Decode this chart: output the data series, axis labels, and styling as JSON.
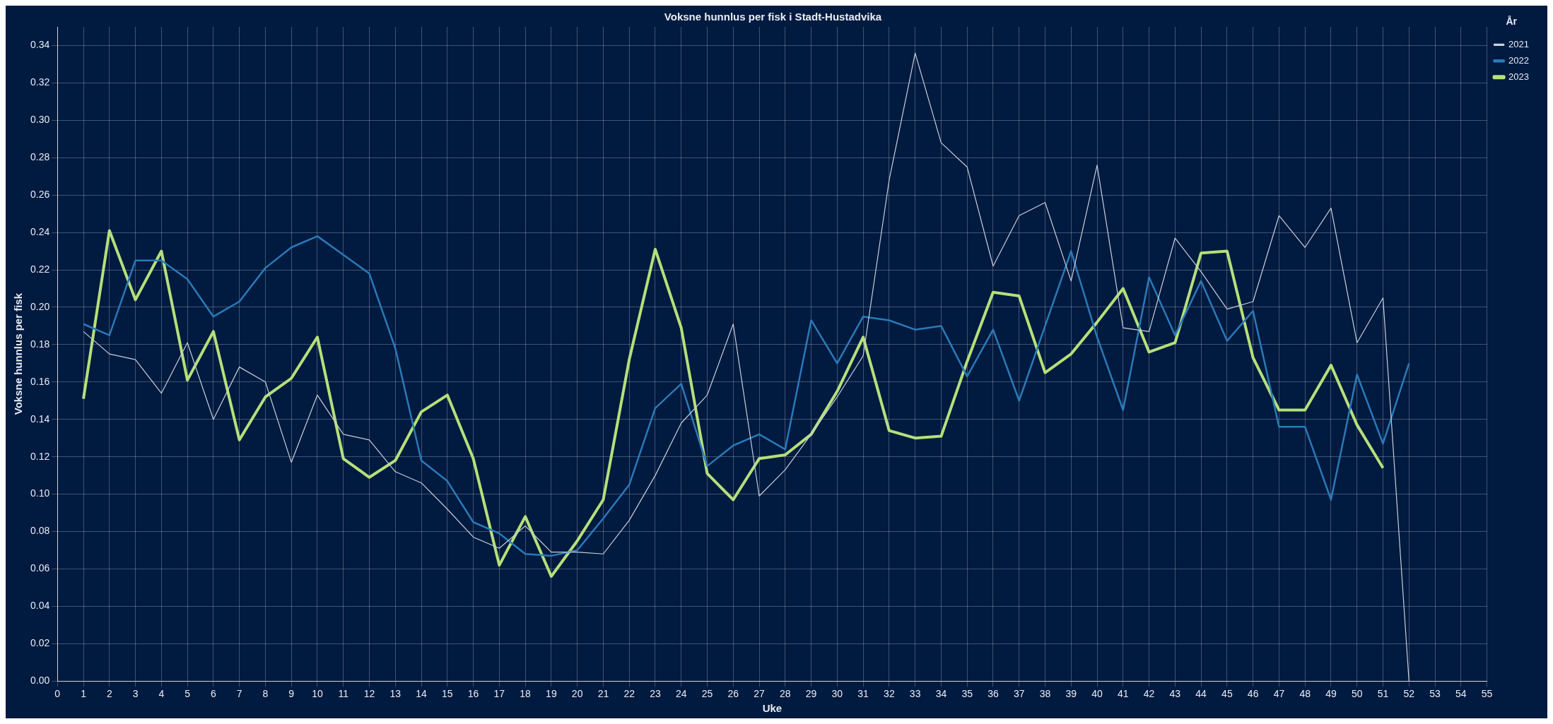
{
  "chart_data": {
    "type": "line",
    "title": "Voksne hunnlus per fisk i Stadt-Hustadvika",
    "xlabel": "Uke",
    "ylabel": "Voksne hunnlus per fisk",
    "legend_title": "År",
    "x": [
      1,
      2,
      3,
      4,
      5,
      6,
      7,
      8,
      9,
      10,
      11,
      12,
      13,
      14,
      15,
      16,
      17,
      18,
      19,
      20,
      21,
      22,
      23,
      24,
      25,
      26,
      27,
      28,
      29,
      30,
      31,
      32,
      33,
      34,
      35,
      36,
      37,
      38,
      39,
      40,
      41,
      42,
      43,
      44,
      45,
      46,
      47,
      48,
      49,
      50,
      51,
      52
    ],
    "series": [
      {
        "name": "2021",
        "color": "#c8d0dc",
        "values": [
          0.187,
          0.175,
          0.172,
          0.154,
          0.181,
          0.14,
          0.168,
          0.16,
          0.117,
          0.153,
          0.132,
          0.129,
          0.112,
          0.106,
          0.092,
          0.077,
          0.071,
          0.083,
          0.069,
          0.069,
          0.068,
          0.086,
          0.11,
          0.138,
          0.153,
          0.191,
          0.099,
          0.113,
          0.132,
          0.152,
          0.174,
          0.268,
          0.336,
          0.288,
          0.275,
          0.222,
          0.249,
          0.256,
          0.214,
          0.276,
          0.189,
          0.187,
          0.237,
          0.219,
          0.199,
          0.203,
          0.249,
          0.232,
          0.253,
          0.181,
          0.205,
          0
        ]
      },
      {
        "name": "2022",
        "color": "#2a7ab8",
        "values": [
          0.191,
          0.185,
          0.225,
          0.225,
          0.215,
          0.195,
          0.203,
          0.221,
          0.232,
          0.238,
          0.228,
          0.218,
          0.178,
          0.118,
          0.107,
          0.085,
          0.079,
          0.068,
          0.067,
          0.07,
          0.087,
          0.105,
          0.146,
          0.159,
          0.115,
          0.126,
          0.132,
          0.124,
          0.193,
          0.17,
          0.195,
          0.193,
          0.188,
          0.19,
          0.163,
          0.188,
          0.15,
          0.19,
          0.23,
          0.184,
          0.145,
          0.216,
          0.185,
          0.214,
          0.182,
          0.198,
          0.136,
          0.136,
          0.097,
          0.164,
          0.127,
          0.17
        ]
      },
      {
        "name": "2023",
        "color": "#b5e07a",
        "values": [
          0.151,
          0.241,
          0.204,
          0.23,
          0.161,
          0.187,
          0.129,
          0.152,
          0.162,
          0.184,
          0.119,
          0.109,
          0.118,
          0.144,
          0.153,
          0.119,
          0.062,
          0.088,
          0.056,
          0.075,
          0.097,
          0.172,
          0.231,
          0.189,
          0.111,
          0.097,
          0.119,
          0.121,
          0.132,
          0.155,
          0.184,
          0.134,
          0.13,
          0.131,
          0.171,
          0.208,
          0.206,
          0.165,
          0.175,
          0.192,
          0.21,
          0.176,
          0.181,
          0.229,
          0.23,
          0.173,
          0.145,
          0.145,
          0.169,
          0.137,
          0.114,
          null
        ]
      }
    ],
    "xlim": [
      0,
      55
    ],
    "xticks": [
      0,
      1,
      2,
      3,
      4,
      5,
      6,
      7,
      8,
      9,
      10,
      11,
      12,
      13,
      14,
      15,
      16,
      17,
      18,
      19,
      20,
      21,
      22,
      23,
      24,
      25,
      26,
      27,
      28,
      29,
      30,
      31,
      32,
      33,
      34,
      35,
      36,
      37,
      38,
      39,
      40,
      41,
      42,
      43,
      44,
      45,
      46,
      47,
      48,
      49,
      50,
      51,
      52,
      53,
      54,
      55
    ],
    "ylim": [
      0,
      0.35
    ],
    "yticks": [
      {
        "value": 0,
        "label": "0.00"
      },
      {
        "value": 0.02,
        "label": "0.02"
      },
      {
        "value": 0.04,
        "label": "0.04"
      },
      {
        "value": 0.06,
        "label": "0.06"
      },
      {
        "value": 0.08,
        "label": "0.08"
      },
      {
        "value": 0.1,
        "label": "0.10"
      },
      {
        "value": 0.12,
        "label": "0.12"
      },
      {
        "value": 0.14,
        "label": "0.14"
      },
      {
        "value": 0.16,
        "label": "0.16"
      },
      {
        "value": 0.18,
        "label": "0.18"
      },
      {
        "value": 0.2,
        "label": "0.20"
      },
      {
        "value": 0.22,
        "label": "0.22"
      },
      {
        "value": 0.24,
        "label": "0.24"
      },
      {
        "value": 0.26,
        "label": "0.26"
      },
      {
        "value": 0.28,
        "label": "0.28"
      },
      {
        "value": 0.3,
        "label": "0.30"
      },
      {
        "value": 0.32,
        "label": "0.32"
      },
      {
        "value": 0.34,
        "label": "0.34"
      }
    ],
    "grid": true,
    "legend": "top right",
    "marker": "none",
    "line_style": "solid"
  }
}
